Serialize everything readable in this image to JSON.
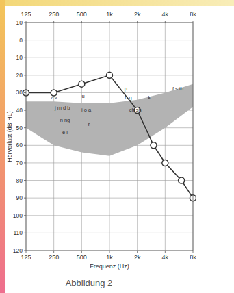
{
  "chart_data": {
    "type": "line",
    "x_label": "Frequenz (Hz)",
    "y_label": "Hörverlust (dB HL)",
    "x": [
      125,
      250,
      500,
      1000,
      2000,
      3000,
      4000,
      6000,
      8000
    ],
    "values": [
      30,
      30,
      25,
      20,
      40,
      60,
      70,
      80,
      90
    ],
    "color": "#333333",
    "marker": "circle",
    "log": "x",
    "grid": true,
    "xlim": [
      125,
      8000
    ],
    "ylim": [
      120,
      -10
    ],
    "xticks": [
      125,
      250,
      500,
      {
        "value": 1000,
        "label": "1k"
      },
      {
        "value": 2000,
        "label": "2k"
      },
      {
        "value": 4000,
        "label": "4k"
      },
      {
        "value": 8000,
        "label": "8k"
      }
    ],
    "yticks": [
      -10,
      0,
      10,
      20,
      30,
      40,
      50,
      60,
      70,
      80,
      90,
      100,
      110,
      120
    ],
    "speech_area": {
      "x": [
        125,
        250,
        500,
        1000,
        2000,
        4000,
        8000
      ],
      "high": [
        35,
        35,
        36,
        36,
        34,
        30,
        25
      ],
      "low": [
        50,
        60,
        64,
        66,
        60,
        50,
        38
      ],
      "color": "#b3b3b3"
    },
    "annotations": [
      {
        "text": "z v",
        "x": 250,
        "y": 33
      },
      {
        "text": "j m d b",
        "x": 310,
        "y": 39
      },
      {
        "text": "n ng",
        "x": 330,
        "y": 46
      },
      {
        "text": "e l",
        "x": 330,
        "y": 53
      },
      {
        "text": "u",
        "x": 520,
        "y": 32
      },
      {
        "text": "i o a",
        "x": 560,
        "y": 40
      },
      {
        "text": "r",
        "x": 600,
        "y": 48
      },
      {
        "text": "p",
        "x": 1500,
        "y": 28
      },
      {
        "text": "h g",
        "x": 1600,
        "y": 33
      },
      {
        "text": "ch sh",
        "x": 1900,
        "y": 40
      },
      {
        "text": "k",
        "x": 2700,
        "y": 33
      },
      {
        "text": "f s th",
        "x": 5500,
        "y": 28
      }
    ]
  },
  "caption": "Abbildung 2"
}
